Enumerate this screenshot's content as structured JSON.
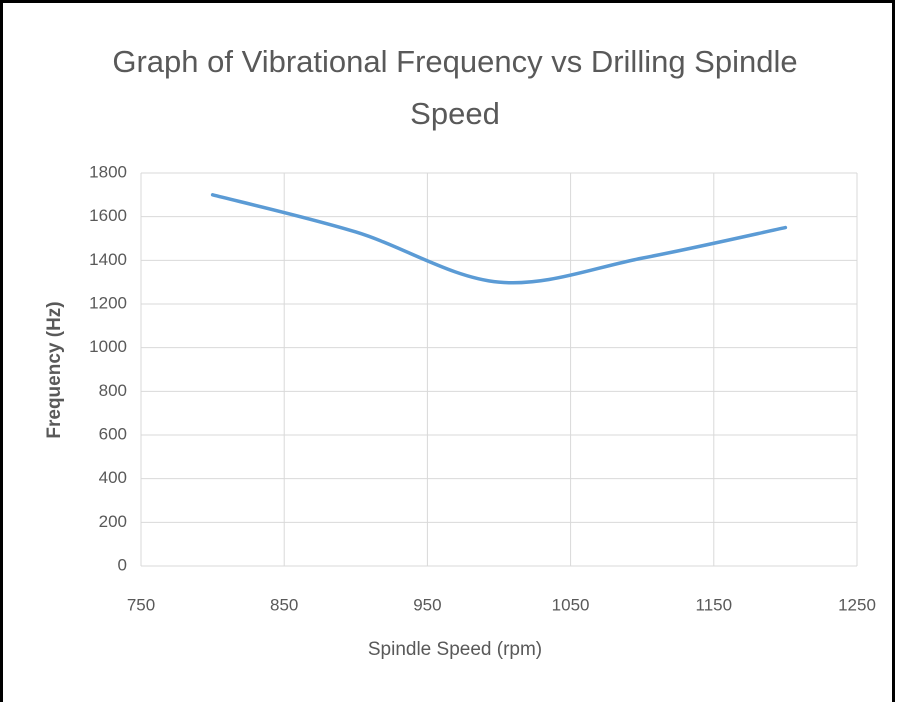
{
  "chart_data": {
    "type": "line",
    "title": "Graph of Vibrational Frequency vs Drilling Spindle Speed",
    "x_label": "Spindle Speed (rpm)",
    "y_label": "Frequency (Hz)",
    "series": [
      {
        "name": "Frequency",
        "color": "#5b9bd5",
        "x": [
          800,
          900,
          1000,
          1100,
          1200
        ],
        "values": [
          1700,
          1530,
          1300,
          1410,
          1550
        ]
      }
    ],
    "xlim": [
      750,
      1250
    ],
    "xticks": [
      750,
      850,
      950,
      1050,
      1150,
      1250
    ],
    "ylim": [
      0,
      1800
    ],
    "yticks": [
      0,
      200,
      400,
      600,
      800,
      1000,
      1200,
      1400,
      1600,
      1800
    ],
    "grid": true,
    "smooth": true
  }
}
